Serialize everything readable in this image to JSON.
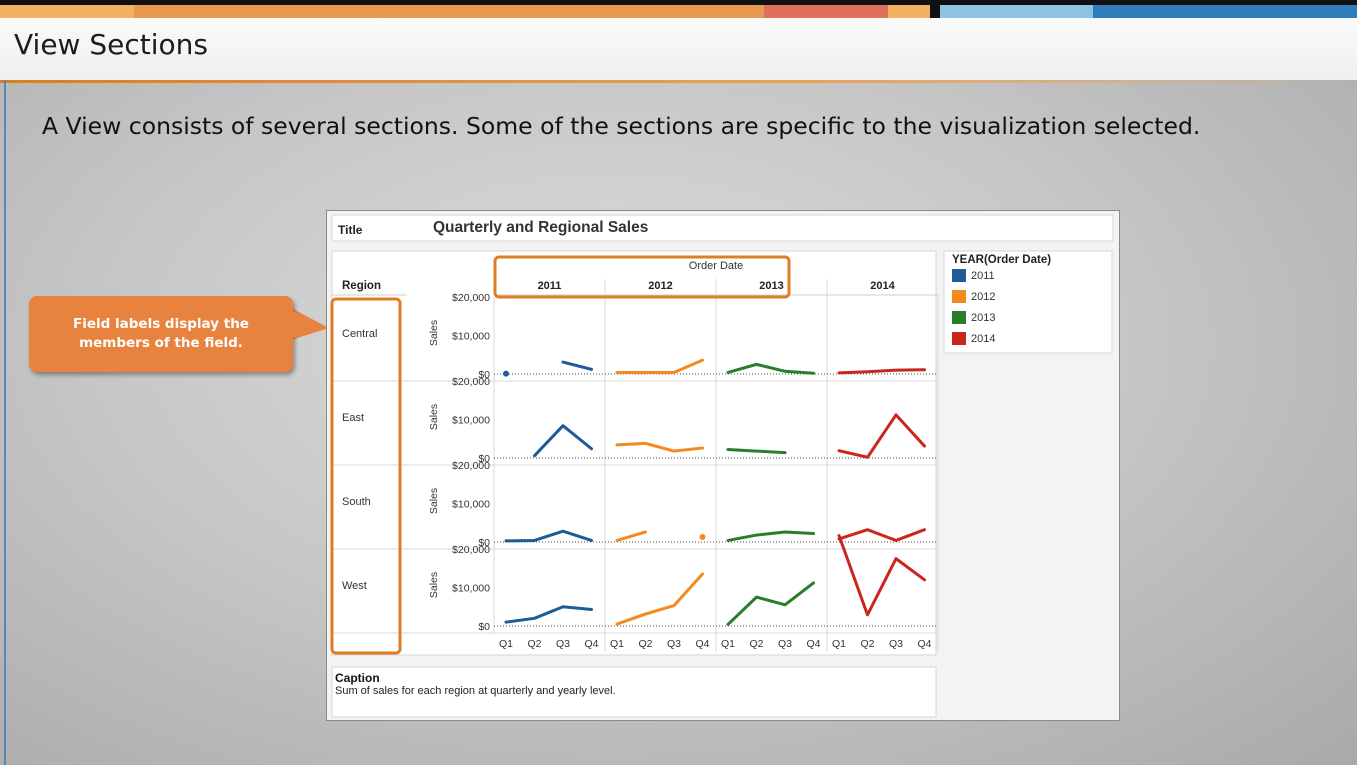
{
  "slide": {
    "title": "View Sections",
    "intro": "A View consists of several sections. Some of the sections are specific to the visualization selected.",
    "callout": "Field labels display the members of the field."
  },
  "colors": {
    "top_bar": [
      "#f2b25f",
      "#e99a50",
      "#e0705a",
      "#f2b25f",
      "#8cc4e2",
      "#2f7dbc"
    ],
    "callout": "#e8833f",
    "highlight": "#dd7d25"
  },
  "view": {
    "title_label": "Title",
    "chart_title": "Quarterly and Regional Sales",
    "row_header": "Region",
    "column_header": "Order Date",
    "caption_label": "Caption",
    "caption_text": "Sum of sales for each region at quarterly and yearly level."
  },
  "chart_data": {
    "type": "line",
    "title": "Quarterly and Regional Sales",
    "ylabel": "Sales",
    "xlabel": "",
    "column_field": "Order Date",
    "row_field": "Region",
    "ylim": [
      0,
      20000
    ],
    "yticks": [
      "$0",
      "$10,000",
      "$20,000"
    ],
    "years": [
      "2011",
      "2012",
      "2013",
      "2014"
    ],
    "quarters": [
      "Q1",
      "Q2",
      "Q3",
      "Q4"
    ],
    "regions": [
      "Central",
      "East",
      "South",
      "West"
    ],
    "legend": {
      "title": "YEAR(Order Date)",
      "position": "right",
      "items": [
        {
          "label": "2011",
          "color": "#1f5a99"
        },
        {
          "label": "2012",
          "color": "#f28a1e"
        },
        {
          "label": "2013",
          "color": "#2a7d2a"
        },
        {
          "label": "2014",
          "color": "#c9271e"
        }
      ]
    },
    "grid": false,
    "values": {
      "Central": [
        [
          100,
          null,
          3100,
          1200
        ],
        [
          400,
          400,
          400,
          3600
        ],
        [
          400,
          2500,
          700,
          200
        ],
        [
          300,
          600,
          1000,
          1100
        ]
      ],
      "East": [
        [
          null,
          600,
          8400,
          2400
        ],
        [
          3400,
          3800,
          1800,
          2600
        ],
        [
          2200,
          1800,
          1400,
          null
        ],
        [
          1900,
          200,
          11200,
          3100
        ]
      ],
      "South": [
        [
          300,
          400,
          2800,
          400
        ],
        [
          400,
          2600,
          null,
          1300
        ],
        [
          400,
          1800,
          2600,
          2200
        ],
        [
          800,
          3200,
          400,
          3200
        ]
      ],
      "West": [
        [
          1000,
          2000,
          5000,
          4300
        ],
        [
          500,
          3100,
          5300,
          13500
        ],
        [
          400,
          7500,
          5500,
          11200
        ],
        [
          23500,
          2900,
          17500,
          12000
        ]
      ]
    }
  }
}
